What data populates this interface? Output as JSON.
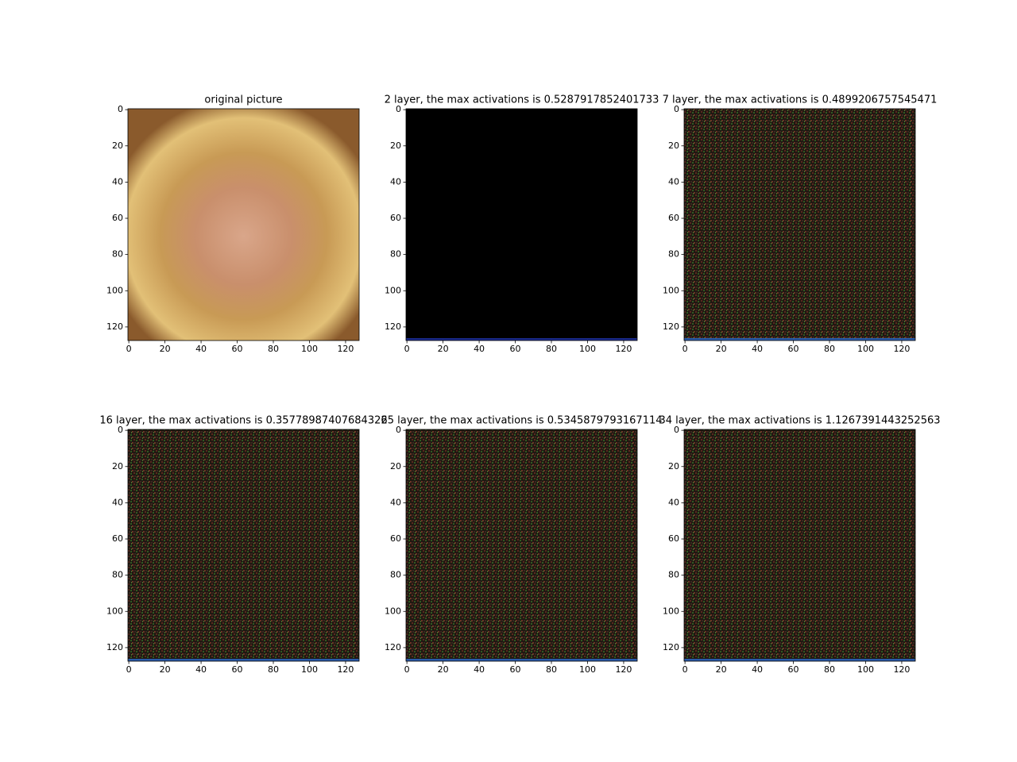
{
  "chart_data": [
    {
      "type": "image",
      "title": "original picture",
      "image": "face",
      "xlim": [
        -0.5,
        127.5
      ],
      "ylim": [
        127.5,
        -0.5
      ],
      "xticks": [
        0,
        20,
        40,
        60,
        80,
        100,
        120
      ],
      "yticks": [
        0,
        20,
        40,
        60,
        80,
        100,
        120
      ]
    },
    {
      "type": "image",
      "title": "2 layer, the max activations is 0.5287917852401733",
      "image": "black",
      "xlim": [
        -0.5,
        127.5
      ],
      "ylim": [
        127.5,
        -0.5
      ],
      "xticks": [
        0,
        20,
        40,
        60,
        80,
        100,
        120
      ],
      "yticks": [
        0,
        20,
        40,
        60,
        80,
        100,
        120
      ]
    },
    {
      "type": "image",
      "title": "7 layer, the max activations is 0.4899206757545471",
      "image": "noise",
      "xlim": [
        -0.5,
        127.5
      ],
      "ylim": [
        127.5,
        -0.5
      ],
      "xticks": [
        0,
        20,
        40,
        60,
        80,
        100,
        120
      ],
      "yticks": [
        0,
        20,
        40,
        60,
        80,
        100,
        120
      ]
    },
    {
      "type": "image",
      "title": "16 layer, the max activations is 0.35778987407684326",
      "image": "noise",
      "xlim": [
        -0.5,
        127.5
      ],
      "ylim": [
        127.5,
        -0.5
      ],
      "xticks": [
        0,
        20,
        40,
        60,
        80,
        100,
        120
      ],
      "yticks": [
        0,
        20,
        40,
        60,
        80,
        100,
        120
      ]
    },
    {
      "type": "image",
      "title": "25 layer, the max activations is 0.5345879793167114",
      "image": "noise",
      "xlim": [
        -0.5,
        127.5
      ],
      "ylim": [
        127.5,
        -0.5
      ],
      "xticks": [
        0,
        20,
        40,
        60,
        80,
        100,
        120
      ],
      "yticks": [
        0,
        20,
        40,
        60,
        80,
        100,
        120
      ]
    },
    {
      "type": "image",
      "title": "34 layer, the max activations is 1.1267391443252563",
      "image": "noise",
      "xlim": [
        -0.5,
        127.5
      ],
      "ylim": [
        127.5,
        -0.5
      ],
      "xticks": [
        0,
        20,
        40,
        60,
        80,
        100,
        120
      ],
      "yticks": [
        0,
        20,
        40,
        60,
        80,
        100,
        120
      ]
    }
  ]
}
